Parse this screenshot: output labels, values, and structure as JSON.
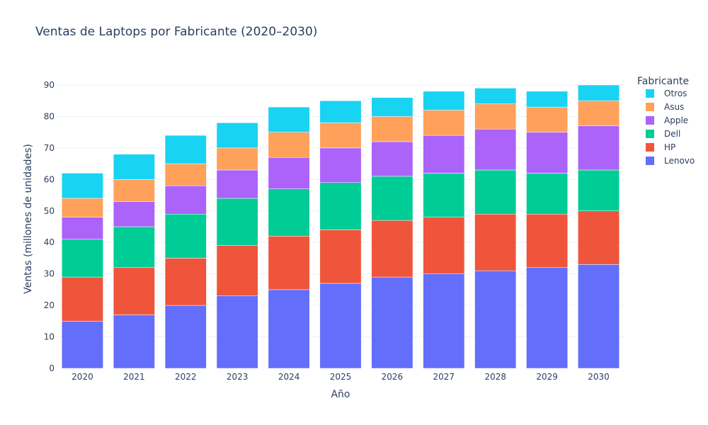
{
  "chart_data": {
    "type": "bar",
    "stacked": true,
    "title": "Ventas de Laptops por Fabricante (2020–2030)",
    "xlabel": "Año",
    "ylabel": "Ventas (millones de unidades)",
    "ylim": [
      0,
      90
    ],
    "yticks": [
      0,
      10,
      20,
      30,
      40,
      50,
      60,
      70,
      80,
      90
    ],
    "grid": true,
    "legend_title": "Fabricante",
    "legend_position": "top-right",
    "categories": [
      "2020",
      "2021",
      "2022",
      "2023",
      "2024",
      "2025",
      "2026",
      "2027",
      "2028",
      "2029",
      "2030"
    ],
    "series": [
      {
        "name": "Lenovo",
        "color": "#636efa",
        "values": [
          15,
          17,
          20,
          23,
          25,
          27,
          29,
          30,
          31,
          32,
          33
        ]
      },
      {
        "name": "HP",
        "color": "#ef553b",
        "values": [
          14,
          15,
          15,
          16,
          17,
          17,
          18,
          18,
          18,
          17,
          17
        ]
      },
      {
        "name": "Dell",
        "color": "#00cc96",
        "values": [
          12,
          13,
          14,
          15,
          15,
          15,
          14,
          14,
          14,
          13,
          13
        ]
      },
      {
        "name": "Apple",
        "color": "#ab63fa",
        "values": [
          7,
          8,
          9,
          9,
          10,
          11,
          11,
          12,
          13,
          13,
          14
        ]
      },
      {
        "name": "Asus",
        "color": "#ffa15a",
        "values": [
          6,
          7,
          7,
          7,
          8,
          8,
          8,
          8,
          8,
          8,
          8
        ]
      },
      {
        "name": "Otros",
        "color": "#19d3f3",
        "values": [
          8,
          8,
          9,
          8,
          8,
          7,
          6,
          6,
          5,
          5,
          5
        ]
      }
    ]
  }
}
